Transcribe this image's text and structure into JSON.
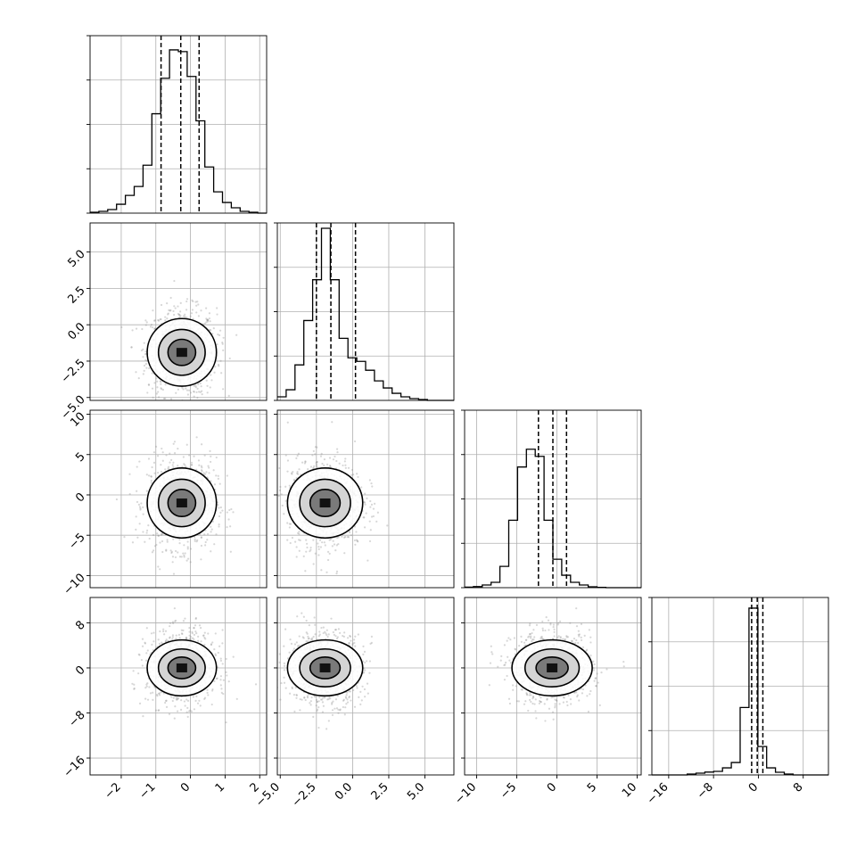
{
  "chart_data": {
    "type": "corner",
    "parameters": 4,
    "grid": true,
    "colors": {
      "line": "#000000",
      "grid": "#b0b0b0",
      "points": "#8c8c8c"
    },
    "quantile_lines": "dashed",
    "params": [
      {
        "range": [
          -2.9,
          2.2
        ],
        "ticks": [
          -2,
          -1,
          0,
          1,
          2
        ],
        "tick_labels": [
          "−2",
          "−1",
          "0",
          "1",
          "2"
        ]
      },
      {
        "range": [
          -5.2,
          7.0
        ],
        "ticks": [
          -5.0,
          -2.5,
          0.0,
          2.5,
          5.0
        ],
        "tick_labels": [
          "−5.0",
          "−2.5",
          "0.0",
          "2.5",
          "5.0"
        ]
      },
      {
        "range": [
          -11.5,
          10.5
        ],
        "ticks": [
          -10,
          -5,
          0,
          5,
          10
        ],
        "tick_labels": [
          "−10",
          "−5",
          "0",
          "5",
          "10"
        ]
      },
      {
        "range": [
          -19.0,
          12.5
        ],
        "ticks": [
          -16,
          -8,
          0,
          8
        ],
        "tick_labels": [
          "−16",
          "−8",
          "0",
          "8"
        ]
      }
    ],
    "histograms": [
      {
        "param": 0,
        "bin_start": -2.9,
        "bin_width": 0.255,
        "counts": [
          0.5,
          1,
          2,
          5,
          10,
          15,
          27,
          56,
          76,
          92,
          91,
          77,
          52,
          26,
          12,
          6,
          3,
          1,
          0.5,
          0
        ],
        "y_max": 100,
        "quantiles": [
          -0.85,
          -0.28,
          0.25
        ]
      },
      {
        "param": 1,
        "bin_start": -5.2,
        "bin_width": 0.61,
        "counts": [
          2,
          6,
          20,
          45,
          68,
          97,
          68,
          35,
          24,
          22,
          17,
          11,
          7,
          4,
          2,
          1,
          0.5,
          0,
          0,
          0
        ],
        "y_max": 100,
        "quantiles": [
          -2.5,
          -1.5,
          0.2
        ]
      },
      {
        "param": 2,
        "bin_start": -11.5,
        "bin_width": 1.1,
        "counts": [
          0.3,
          0.6,
          1.5,
          3,
          12,
          38,
          68,
          78,
          74,
          38,
          16,
          7,
          3,
          1.5,
          0.5,
          0.2,
          0,
          0,
          0,
          0
        ],
        "y_max": 100,
        "quantiles": [
          -2.3,
          -0.5,
          1.2
        ]
      },
      {
        "param": 3,
        "bin_start": -19.0,
        "bin_width": 1.575,
        "counts": [
          0,
          0,
          0,
          0,
          0.5,
          1,
          1.6,
          2,
          4,
          7,
          38,
          94,
          16,
          4,
          1.5,
          0.5,
          0,
          0,
          0,
          0
        ],
        "y_max": 100,
        "quantiles": [
          -1.2,
          -0.2,
          0.8
        ]
      }
    ],
    "scatter_panels": [
      {
        "x_param": 0,
        "y_param": 1,
        "center": [
          -0.25,
          -1.9
        ],
        "spread": [
          0.5,
          1.5
        ]
      },
      {
        "x_param": 0,
        "y_param": 2,
        "center": [
          -0.25,
          -1.0
        ],
        "spread": [
          0.5,
          2.8
        ]
      },
      {
        "x_param": 1,
        "y_param": 2,
        "center": [
          -1.9,
          -1.0
        ],
        "spread": [
          1.3,
          2.8
        ]
      },
      {
        "x_param": 0,
        "y_param": 3,
        "center": [
          -0.25,
          0.0
        ],
        "spread": [
          0.5,
          3.2
        ]
      },
      {
        "x_param": 1,
        "y_param": 3,
        "center": [
          -1.9,
          0.0
        ],
        "spread": [
          1.3,
          3.2
        ]
      },
      {
        "x_param": 2,
        "y_param": 3,
        "center": [
          -0.6,
          0.0
        ],
        "spread": [
          2.5,
          3.2
        ]
      }
    ]
  }
}
